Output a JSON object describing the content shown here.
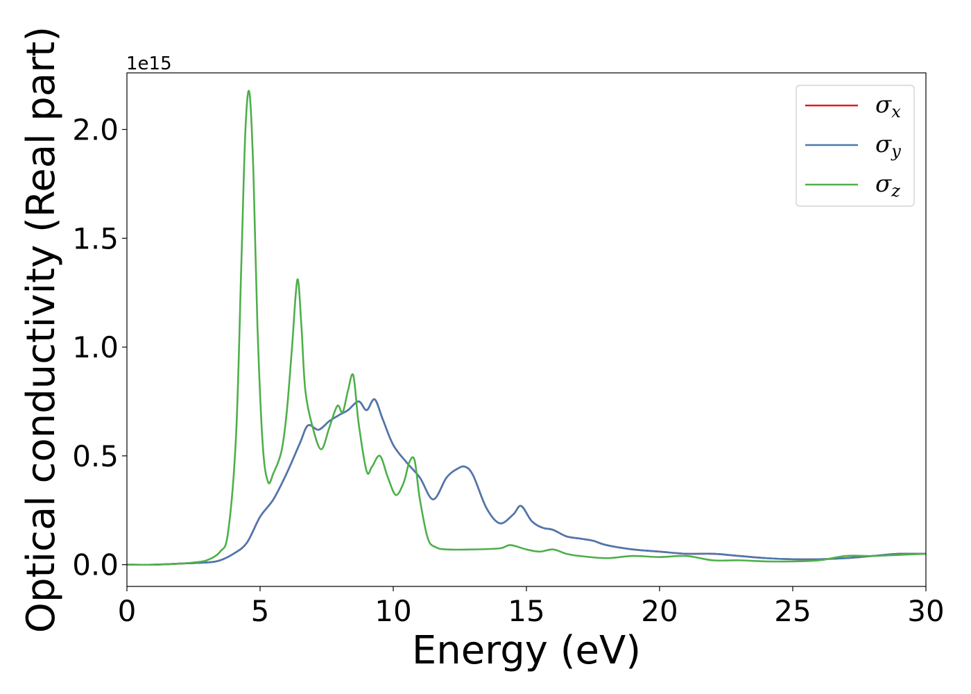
{
  "chart_data": {
    "type": "line",
    "xlabel": "Energy (eV)",
    "ylabel": "Optical conductivity (Real part)",
    "offset_label": "1e15",
    "xlim": [
      0,
      30
    ],
    "ylim": [
      -0.1,
      2.26
    ],
    "x_ticks": [
      0,
      5,
      10,
      15,
      20,
      25,
      30
    ],
    "y_ticks": [
      0.0,
      0.5,
      1.0,
      1.5,
      2.0
    ],
    "y_tick_labels": [
      "0.0",
      "0.5",
      "1.0",
      "1.5",
      "2.0"
    ],
    "grid": false,
    "legend_position": "top-right",
    "series": [
      {
        "name": "σx",
        "name_base": "σ",
        "name_sub": "x",
        "color": "#e41a1c",
        "x": [
          0,
          1,
          2,
          3,
          3.5,
          4,
          4.5,
          5,
          5.5,
          6,
          6.5,
          6.8,
          7.2,
          7.6,
          8,
          8.3,
          8.7,
          9,
          9.3,
          9.6,
          10,
          10.5,
          11,
          11.5,
          12,
          12.4,
          12.7,
          13,
          13.5,
          14,
          14.5,
          14.8,
          15.2,
          15.6,
          16,
          16.5,
          17,
          17.5,
          18,
          19,
          20,
          21,
          22,
          23,
          24,
          25,
          26,
          27,
          28,
          29,
          30
        ],
        "y": [
          0.0,
          0.0,
          0.005,
          0.01,
          0.02,
          0.05,
          0.1,
          0.22,
          0.3,
          0.42,
          0.56,
          0.64,
          0.62,
          0.66,
          0.69,
          0.71,
          0.75,
          0.71,
          0.76,
          0.67,
          0.55,
          0.47,
          0.4,
          0.3,
          0.4,
          0.44,
          0.45,
          0.41,
          0.26,
          0.19,
          0.23,
          0.27,
          0.2,
          0.17,
          0.16,
          0.13,
          0.12,
          0.11,
          0.09,
          0.07,
          0.06,
          0.05,
          0.05,
          0.04,
          0.03,
          0.025,
          0.025,
          0.03,
          0.04,
          0.05,
          0.05
        ]
      },
      {
        "name": "σy",
        "name_base": "σ",
        "name_sub": "y",
        "color": "#4a78b0",
        "x": [
          0,
          1,
          2,
          3,
          3.5,
          4,
          4.5,
          5,
          5.5,
          6,
          6.5,
          6.8,
          7.2,
          7.6,
          8,
          8.3,
          8.7,
          9,
          9.3,
          9.6,
          10,
          10.5,
          11,
          11.5,
          12,
          12.4,
          12.7,
          13,
          13.5,
          14,
          14.5,
          14.8,
          15.2,
          15.6,
          16,
          16.5,
          17,
          17.5,
          18,
          19,
          20,
          21,
          22,
          23,
          24,
          25,
          26,
          27,
          28,
          29,
          30
        ],
        "y": [
          0.0,
          0.0,
          0.005,
          0.01,
          0.02,
          0.05,
          0.1,
          0.22,
          0.3,
          0.42,
          0.56,
          0.64,
          0.62,
          0.66,
          0.69,
          0.71,
          0.75,
          0.71,
          0.76,
          0.67,
          0.55,
          0.47,
          0.4,
          0.3,
          0.4,
          0.44,
          0.45,
          0.41,
          0.26,
          0.19,
          0.23,
          0.27,
          0.2,
          0.17,
          0.16,
          0.13,
          0.12,
          0.11,
          0.09,
          0.07,
          0.06,
          0.05,
          0.05,
          0.04,
          0.03,
          0.025,
          0.025,
          0.03,
          0.04,
          0.05,
          0.05
        ]
      },
      {
        "name": "σz",
        "name_base": "σ",
        "name_sub": "z",
        "color": "#4daf4a",
        "x": [
          0,
          1,
          2,
          2.5,
          3,
          3.5,
          3.8,
          4.1,
          4.3,
          4.45,
          4.6,
          4.75,
          4.9,
          5.1,
          5.3,
          5.5,
          5.8,
          6.0,
          6.2,
          6.4,
          6.55,
          6.7,
          7.0,
          7.3,
          7.6,
          7.9,
          8.1,
          8.3,
          8.5,
          8.7,
          9.0,
          9.2,
          9.5,
          9.8,
          10.1,
          10.4,
          10.6,
          10.8,
          11.0,
          11.3,
          11.6,
          12,
          13,
          14,
          14.4,
          15,
          15.5,
          16,
          16.5,
          17,
          18,
          19,
          20,
          21,
          22,
          23,
          24,
          25,
          26,
          27,
          28,
          29,
          30
        ],
        "y": [
          0.0,
          0.0,
          0.005,
          0.01,
          0.02,
          0.06,
          0.15,
          0.6,
          1.4,
          2.0,
          2.17,
          1.8,
          1.1,
          0.55,
          0.38,
          0.42,
          0.52,
          0.7,
          1.0,
          1.31,
          1.1,
          0.8,
          0.62,
          0.53,
          0.63,
          0.73,
          0.7,
          0.8,
          0.87,
          0.65,
          0.43,
          0.45,
          0.5,
          0.4,
          0.32,
          0.38,
          0.47,
          0.48,
          0.3,
          0.12,
          0.08,
          0.07,
          0.07,
          0.075,
          0.09,
          0.07,
          0.06,
          0.07,
          0.05,
          0.04,
          0.03,
          0.04,
          0.035,
          0.04,
          0.02,
          0.02,
          0.015,
          0.015,
          0.02,
          0.04,
          0.04,
          0.045,
          0.05
        ]
      }
    ]
  }
}
